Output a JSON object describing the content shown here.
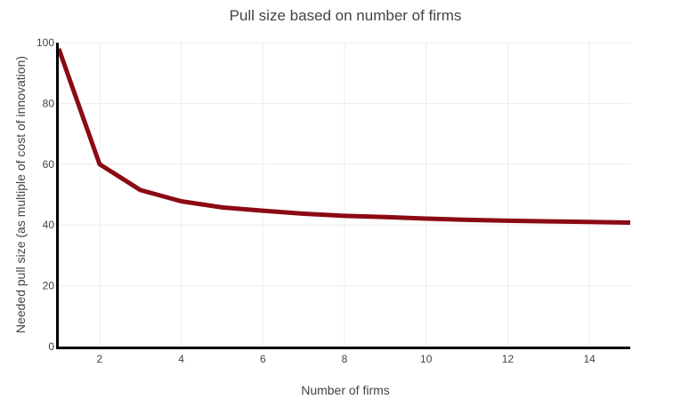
{
  "chart_data": {
    "type": "line",
    "title": "Pull size based on number of firms",
    "xlabel": "Number of firms",
    "ylabel": "Needed pull size (as multiple of cost of innovation)",
    "xlim": [
      1,
      15
    ],
    "ylim": [
      0,
      100
    ],
    "x_ticks": [
      2,
      4,
      6,
      8,
      10,
      12,
      14
    ],
    "y_ticks": [
      0,
      20,
      40,
      60,
      80,
      100
    ],
    "grid": true,
    "legend": "none",
    "colors": {
      "line": "#8b0a14",
      "axis": "#000000",
      "grid": "#ececec",
      "text": "#444444"
    },
    "series": [
      {
        "x": [
          1,
          2,
          3,
          4,
          5,
          6,
          7,
          8,
          9,
          10,
          11,
          12,
          13,
          14,
          15
        ],
        "values": [
          98,
          60,
          51.5,
          47.8,
          45.8,
          44.7,
          43.7,
          43.0,
          42.6,
          42.1,
          41.7,
          41.4,
          41.2,
          41.0,
          40.8
        ]
      }
    ]
  }
}
